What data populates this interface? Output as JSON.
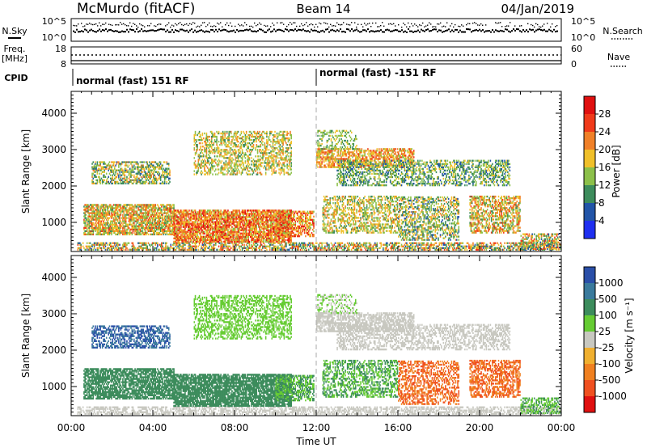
{
  "chart_data": [
    {
      "panel": "header",
      "type": "table",
      "station": "McMurdo (fitACF)",
      "beam": "Beam 14",
      "date": "04/Jan/2019",
      "left_labels": {
        "nsky": "N.Sky",
        "freq_line1": "Freq.",
        "freq_line2": "[MHz]",
        "cpid": "CPID"
      },
      "right_labels": {
        "nsearch": "N.Search",
        "nave": "Nave"
      },
      "noise_axis_left": [
        "10^5",
        "10^0"
      ],
      "noise_axis_right": [
        "10^5",
        "10^0"
      ],
      "freq_axis_left": [
        18,
        8
      ],
      "nave_axis_right": [
        60,
        0
      ],
      "cpid_segments": [
        {
          "label": "normal (fast) 151 RF",
          "start": "00:00",
          "end": "12:00"
        },
        {
          "label": "normal (fast) -151 RF",
          "start": "12:00",
          "end": "24:00"
        }
      ]
    },
    {
      "panel": "power",
      "type": "heatmap",
      "ylabel": "Slant Range [km]",
      "yticks": [
        1000,
        2000,
        3000,
        4000
      ],
      "ylim": [
        200,
        4600
      ],
      "colorbar_label": "Power [dB]",
      "colorbar_ticks": [
        4,
        8,
        12,
        16,
        20,
        24,
        28
      ],
      "colors": [
        "#1f2ff0",
        "#2255a8",
        "#3d8c5c",
        "#8cc04a",
        "#f0c02a",
        "#f08028",
        "#f03a1a",
        "#e01010"
      ]
    },
    {
      "panel": "velocity",
      "type": "heatmap",
      "ylabel": "Slant Range [km]",
      "yticks": [
        1000,
        2000,
        3000,
        4000
      ],
      "ylim": [
        200,
        4600
      ],
      "colorbar_label": "Velocity [m s⁻¹]",
      "colorbar_ticks": [
        1000,
        500,
        100,
        25,
        -25,
        -100,
        -500,
        -1000
      ],
      "colors": [
        "#2a4fa8",
        "#3a7a9c",
        "#3c8c5c",
        "#66cc33",
        "#c8c8c0",
        "#f0b030",
        "#f08020",
        "#f05020",
        "#e01010"
      ],
      "xlabel": "Time UT",
      "xticks": [
        "00:00",
        "04:00",
        "08:00",
        "12:00",
        "16:00",
        "20:00",
        "00:00"
      ]
    }
  ]
}
